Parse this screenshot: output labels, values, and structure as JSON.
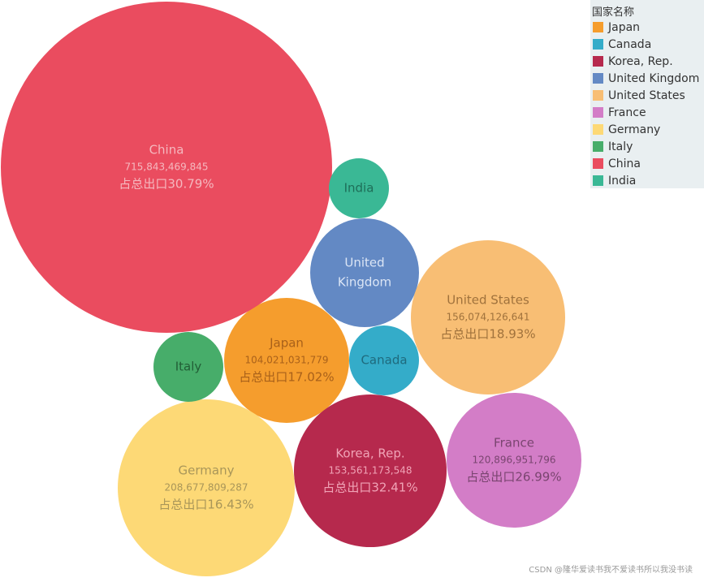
{
  "chart_data": {
    "type": "bubble",
    "legend_title": "国家名称",
    "legend_position": "top-right",
    "series": [
      {
        "name": "Japan",
        "value": 104021031779,
        "value_label": "104,021,031,779",
        "share_label": "占总出口17.02%",
        "color": "#f59d2d"
      },
      {
        "name": "Canada",
        "value": null,
        "value_label": "",
        "share_label": "",
        "color": "#34acc9"
      },
      {
        "name": "Korea, Rep.",
        "value": 153561173548,
        "value_label": "153,561,173,548",
        "share_label": "占总出口32.41%",
        "color": "#b6294d"
      },
      {
        "name": "United Kingdom",
        "value": null,
        "value_label": "",
        "share_label": "",
        "color": "#6389c4"
      },
      {
        "name": "United States",
        "value": 156074126641,
        "value_label": "156,074,126,641",
        "share_label": "占总出口18.93%",
        "color": "#f8be74"
      },
      {
        "name": "France",
        "value": 120896951796,
        "value_label": "120,896,951,796",
        "share_label": "占总出口26.99%",
        "color": "#d37dc7"
      },
      {
        "name": "Germany",
        "value": 208677809287,
        "value_label": "208,677,809,287",
        "share_label": "占总出口16.43%",
        "color": "#fdd976"
      },
      {
        "name": "Italy",
        "value": null,
        "value_label": "",
        "share_label": "",
        "color": "#47ad6a"
      },
      {
        "name": "China",
        "value": 715843469845,
        "value_label": "715,843,469,845",
        "share_label": "占总出口30.79%",
        "color": "#ea4c5f"
      },
      {
        "name": "India",
        "value": null,
        "value_label": "",
        "share_label": "",
        "color": "#3ab895"
      }
    ]
  },
  "watermark": "CSDN @隆华爱读书我不爱读书所以我没书读"
}
